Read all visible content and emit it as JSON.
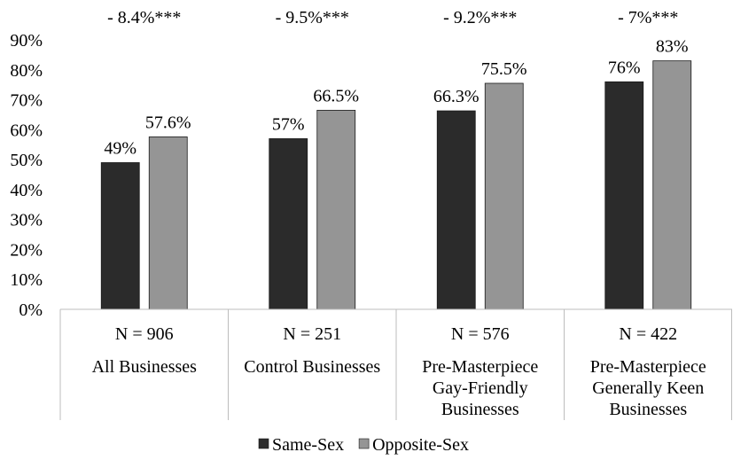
{
  "chart_data": {
    "type": "bar",
    "categories": [
      {
        "n": "N = 906",
        "label": [
          "All Businesses"
        ],
        "diff": "- 8.4%***"
      },
      {
        "n": "N = 251",
        "label": [
          "Control Businesses"
        ],
        "diff": "- 9.5%***"
      },
      {
        "n": "N = 576",
        "label": [
          "Pre-Masterpiece",
          "Gay-Friendly",
          "Businesses"
        ],
        "diff": "- 9.2%***"
      },
      {
        "n": "N = 422",
        "label": [
          "Pre-Masterpiece",
          "Generally Keen",
          "Businesses"
        ],
        "diff": "- 7%***"
      }
    ],
    "series": [
      {
        "name": "Same-Sex",
        "color": "#2b2b2b",
        "values": [
          49,
          57,
          66.3,
          76
        ],
        "labels": [
          "49%",
          "57%",
          "66.3%",
          "76%"
        ]
      },
      {
        "name": "Opposite-Sex",
        "color": "#959595",
        "values": [
          57.6,
          66.5,
          75.5,
          83
        ],
        "labels": [
          "57.6%",
          "66.5%",
          "75.5%",
          "83%"
        ]
      }
    ],
    "ylim": [
      0,
      90
    ],
    "yticks": [
      "0%",
      "10%",
      "20%",
      "30%",
      "40%",
      "50%",
      "60%",
      "70%",
      "80%",
      "90%"
    ],
    "grid": false,
    "legend_position": "bottom"
  }
}
